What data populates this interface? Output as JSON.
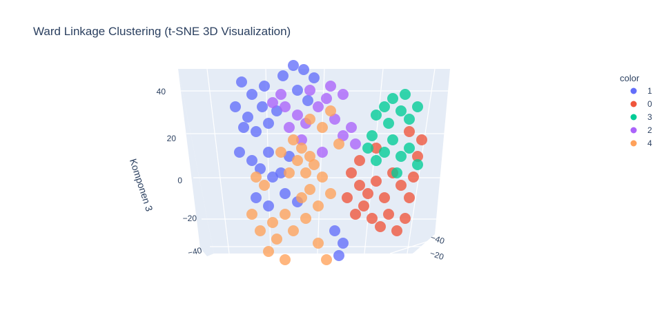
{
  "chart_data": {
    "type": "scatter",
    "title": "Ward Linkage Clustering (t-SNE 3D Visualization)",
    "zlabel": "Komponen 3",
    "z_ticks": [
      "40",
      "20",
      "0",
      "−20",
      "−40"
    ],
    "x_ticks_visible": [
      "−40",
      "−20"
    ],
    "legend": {
      "title": "color",
      "entries": [
        {
          "label": "1",
          "color": "#636efa"
        },
        {
          "label": "0",
          "color": "#ef553b"
        },
        {
          "label": "3",
          "color": "#00cc96"
        },
        {
          "label": "2",
          "color": "#ab63fa"
        },
        {
          "label": "4",
          "color": "#ffa15a"
        }
      ]
    },
    "series": [
      {
        "name": "1",
        "color": "#636efa",
        "points": [
          [
            -35,
            42
          ],
          [
            -30,
            36
          ],
          [
            -25,
            30
          ],
          [
            -32,
            25
          ],
          [
            -28,
            18
          ],
          [
            -22,
            22
          ],
          [
            -18,
            28
          ],
          [
            -24,
            40
          ],
          [
            -15,
            45
          ],
          [
            -10,
            50
          ],
          [
            -5,
            48
          ],
          [
            0,
            44
          ],
          [
            -8,
            38
          ],
          [
            -3,
            33
          ],
          [
            -36,
            8
          ],
          [
            -30,
            4
          ],
          [
            -26,
            0
          ],
          [
            -20,
            -4
          ],
          [
            -22,
            8
          ],
          [
            -16,
            -2
          ],
          [
            -12,
            6
          ],
          [
            -28,
            -14
          ],
          [
            -22,
            -18
          ],
          [
            -14,
            -12
          ],
          [
            -8,
            -16
          ],
          [
            10,
            -30
          ],
          [
            14,
            -36
          ],
          [
            12,
            -42
          ],
          [
            -38,
            30
          ],
          [
            -34,
            20
          ]
        ]
      },
      {
        "name": "0",
        "color": "#ef553b",
        "points": [
          [
            18,
            -2
          ],
          [
            22,
            -8
          ],
          [
            26,
            -12
          ],
          [
            30,
            -6
          ],
          [
            24,
            -18
          ],
          [
            20,
            -22
          ],
          [
            28,
            -24
          ],
          [
            34,
            -14
          ],
          [
            36,
            -22
          ],
          [
            32,
            -28
          ],
          [
            40,
            -30
          ],
          [
            44,
            -24
          ],
          [
            46,
            -14
          ],
          [
            42,
            -8
          ],
          [
            38,
            -2
          ],
          [
            48,
            -4
          ],
          [
            50,
            6
          ],
          [
            52,
            14
          ],
          [
            46,
            18
          ],
          [
            16,
            -14
          ],
          [
            22,
            4
          ],
          [
            30,
            10
          ]
        ]
      },
      {
        "name": "3",
        "color": "#00cc96",
        "points": [
          [
            30,
            26
          ],
          [
            34,
            30
          ],
          [
            38,
            34
          ],
          [
            42,
            28
          ],
          [
            36,
            22
          ],
          [
            44,
            36
          ],
          [
            46,
            24
          ],
          [
            50,
            30
          ],
          [
            26,
            10
          ],
          [
            30,
            4
          ],
          [
            34,
            8
          ],
          [
            38,
            14
          ],
          [
            42,
            6
          ],
          [
            46,
            10
          ],
          [
            50,
            2
          ],
          [
            40,
            -2
          ],
          [
            28,
            16
          ]
        ]
      },
      {
        "name": "2",
        "color": "#ab63fa",
        "points": [
          [
            -20,
            32
          ],
          [
            -14,
            30
          ],
          [
            -8,
            26
          ],
          [
            -12,
            20
          ],
          [
            -4,
            22
          ],
          [
            2,
            30
          ],
          [
            6,
            34
          ],
          [
            10,
            24
          ],
          [
            14,
            16
          ],
          [
            18,
            20
          ],
          [
            20,
            12
          ],
          [
            -16,
            36
          ],
          [
            -2,
            38
          ],
          [
            8,
            40
          ],
          [
            -6,
            14
          ],
          [
            4,
            8
          ],
          [
            14,
            36
          ]
        ]
      },
      {
        "name": "4",
        "color": "#ffa15a",
        "points": [
          [
            -10,
            14
          ],
          [
            -6,
            10
          ],
          [
            -2,
            6
          ],
          [
            -8,
            4
          ],
          [
            -12,
            -2
          ],
          [
            -4,
            -2
          ],
          [
            0,
            2
          ],
          [
            4,
            -4
          ],
          [
            -2,
            -10
          ],
          [
            -6,
            -14
          ],
          [
            -14,
            -22
          ],
          [
            -20,
            -26
          ],
          [
            -26,
            -30
          ],
          [
            -18,
            -34
          ],
          [
            -10,
            -30
          ],
          [
            -4,
            -24
          ],
          [
            2,
            -18
          ],
          [
            8,
            -12
          ],
          [
            -28,
            -4
          ],
          [
            -24,
            -8
          ],
          [
            -30,
            -22
          ],
          [
            -22,
            -40
          ],
          [
            -14,
            -44
          ],
          [
            2,
            -36
          ],
          [
            6,
            -44
          ],
          [
            -2,
            24
          ],
          [
            4,
            20
          ],
          [
            8,
            28
          ],
          [
            12,
            12
          ],
          [
            -16,
            8
          ]
        ]
      }
    ]
  }
}
